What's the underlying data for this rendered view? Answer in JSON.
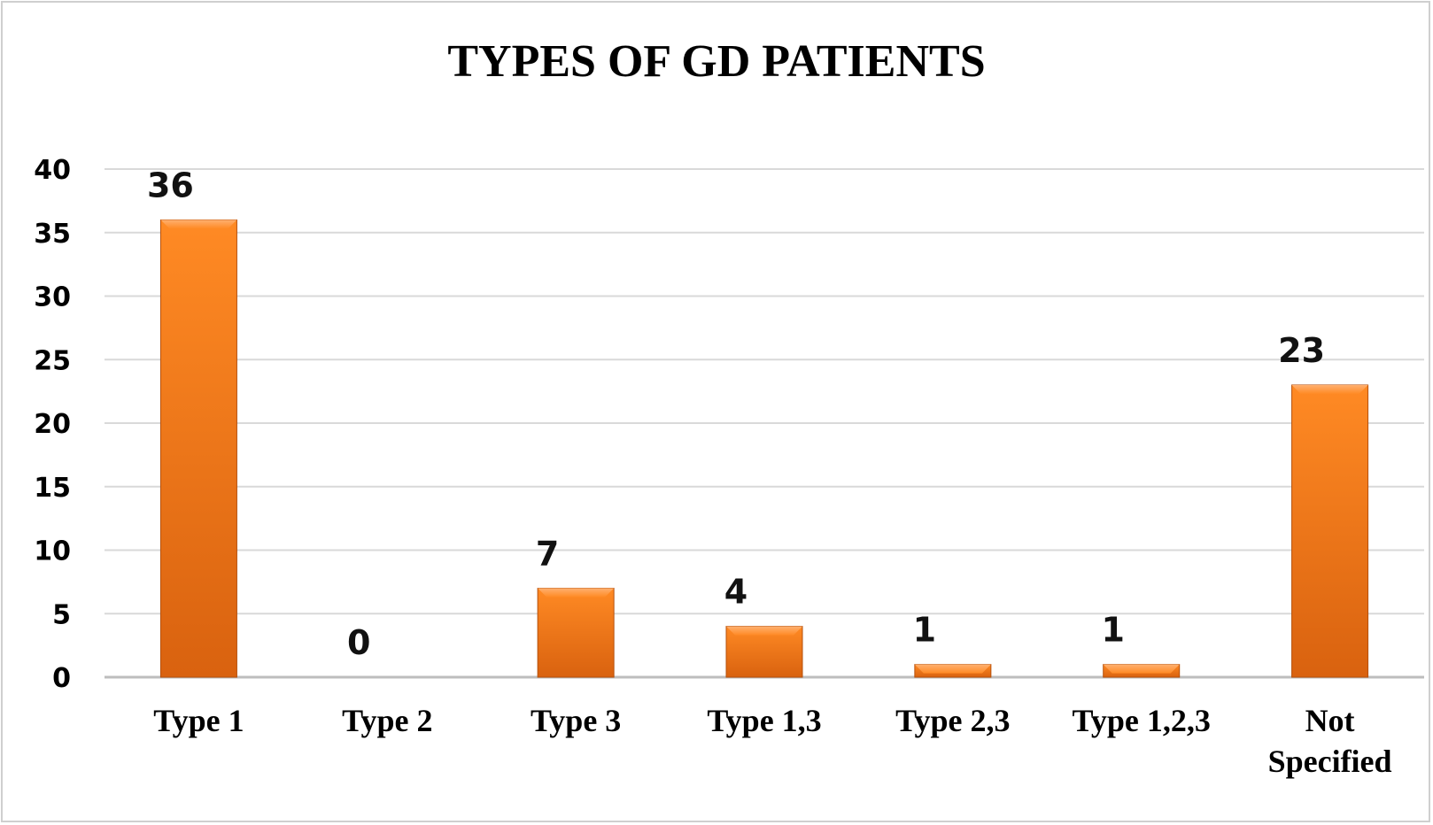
{
  "chart_data": {
    "type": "bar",
    "title": "TYPES OF GD PATIENTS",
    "xlabel": "",
    "ylabel": "",
    "categories": [
      "Type 1",
      "Type 2",
      "Type 3",
      "Type 1,3",
      "Type 2,3",
      "Type 1,2,3",
      "Not Specified"
    ],
    "values": [
      36,
      0,
      7,
      4,
      1,
      1,
      23
    ],
    "data_labels": [
      "36",
      "0",
      "7",
      "4",
      "1",
      "1",
      "23"
    ],
    "yticks": [
      "0",
      "5",
      "10",
      "15",
      "20",
      "25",
      "30",
      "35",
      "40"
    ],
    "ylim": [
      0,
      40
    ],
    "grid": true,
    "legend": "none",
    "bar_color": "#f07a1a",
    "bar_color_dark": "#c85a10"
  }
}
